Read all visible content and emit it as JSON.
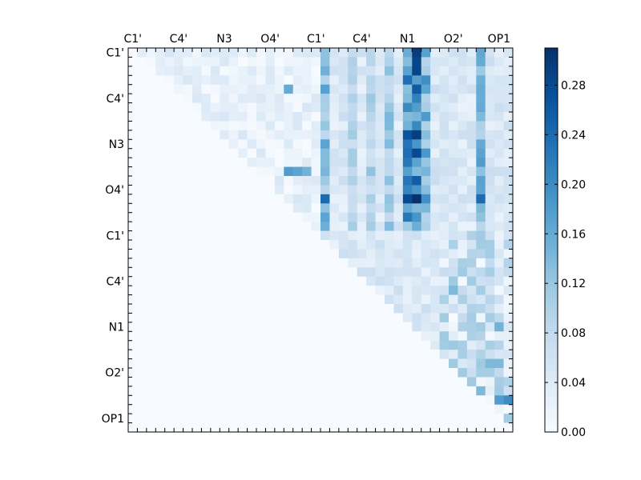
{
  "chart_data": {
    "type": "heatmap",
    "title": "",
    "xlabel": "",
    "ylabel": "",
    "rows": 42,
    "cols": 42,
    "x_tick_labels": [
      "C1'",
      "C4'",
      "N3",
      "O4'",
      "C1'",
      "C4'",
      "N1",
      "O2'",
      "OP1"
    ],
    "y_tick_labels": [
      "C1'",
      "C4'",
      "N3",
      "O4'",
      "C1'",
      "C4'",
      "N1",
      "O2'",
      "OP1"
    ],
    "tick_label_positions_index": [
      0.5,
      5.5,
      10.5,
      15.5,
      20.5,
      25.5,
      30.5,
      35.5,
      40.5
    ],
    "upper_triangle_only": true,
    "colormap": "Blues",
    "colormap_stops": [
      "#f7fbff",
      "#deebf7",
      "#c6dbef",
      "#9ecae1",
      "#6baed6",
      "#4292c6",
      "#2171b5",
      "#08519c",
      "#08306b"
    ],
    "vmin": 0.0,
    "vmax": 0.31,
    "colorbar": {
      "ticks": [
        0.0,
        0.04,
        0.08,
        0.12,
        0.16,
        0.2,
        0.24,
        0.28
      ],
      "tick_labels": [
        "0.00",
        "0.04",
        "0.08",
        "0.12",
        "0.16",
        "0.20",
        "0.24",
        "0.28"
      ]
    },
    "hot_columns": [
      {
        "col": 21,
        "strength": 0.18
      },
      {
        "col": 24,
        "strength": 0.12
      },
      {
        "col": 26,
        "strength": 0.13
      },
      {
        "col": 28,
        "strength": 0.16
      },
      {
        "col": 30,
        "strength": 0.24
      },
      {
        "col": 31,
        "strength": 0.3
      },
      {
        "col": 32,
        "strength": 0.2
      },
      {
        "col": 38,
        "strength": 0.18
      }
    ],
    "hot_cells": [
      {
        "row": 13,
        "col": 17,
        "value": 0.18
      },
      {
        "row": 13,
        "col": 18,
        "value": 0.17
      },
      {
        "row": 13,
        "col": 19,
        "value": 0.15
      },
      {
        "row": 16,
        "col": 31,
        "value": 0.31
      },
      {
        "row": 16,
        "col": 30,
        "value": 0.28
      },
      {
        "row": 16,
        "col": 21,
        "value": 0.24
      },
      {
        "row": 16,
        "col": 38,
        "value": 0.24
      },
      {
        "row": 9,
        "col": 30,
        "value": 0.27
      },
      {
        "row": 4,
        "col": 17,
        "value": 0.16
      },
      {
        "row": 4,
        "col": 31,
        "value": 0.26
      },
      {
        "row": 38,
        "col": 40,
        "value": 0.18
      },
      {
        "row": 38,
        "col": 41,
        "value": 0.2
      },
      {
        "row": 37,
        "col": 38,
        "value": 0.14
      },
      {
        "row": 34,
        "col": 39,
        "value": 0.14
      },
      {
        "row": 34,
        "col": 40,
        "value": 0.14
      },
      {
        "row": 26,
        "col": 35,
        "value": 0.14
      },
      {
        "row": 30,
        "col": 40,
        "value": 0.15
      }
    ]
  }
}
